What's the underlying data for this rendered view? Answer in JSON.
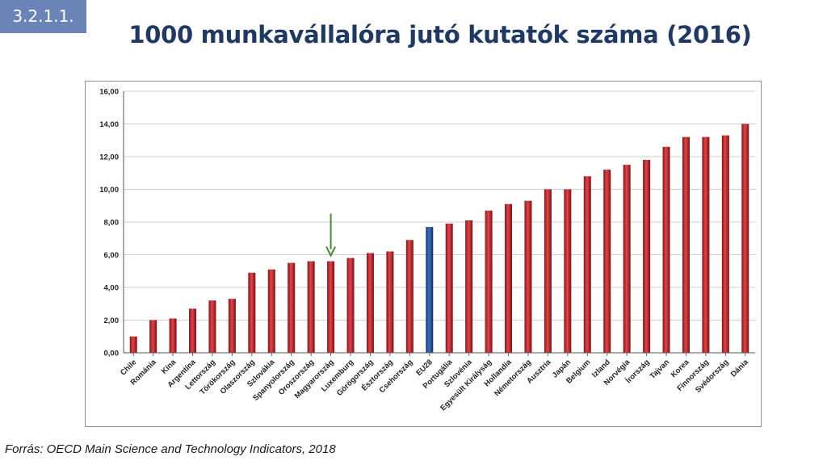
{
  "slide_number": "3.2.1.1.",
  "title": "1000 munkavállalóra jutó kutatók száma (2016)",
  "source": "Forrás: OECD Main Science and Technology Indicators, 2018",
  "colors": {
    "bar": "#c8282d",
    "highlight_bar": "#1f4e96",
    "arrow": "#4c8a2e",
    "title": "#1f3864",
    "slide_number_bg": "#6b84b8"
  },
  "chart_data": {
    "type": "bar",
    "categories": [
      "Chile",
      "Románia",
      "Kína",
      "Argentína",
      "Lettország",
      "Törökország",
      "Olaszország",
      "Szlovákia",
      "Spanyolország",
      "Oroszország",
      "Magyarország",
      "Luxemburg",
      "Görögország",
      "Észtország",
      "Csehország",
      "EU28",
      "Portugália",
      "Szlovénia",
      "Egyesült Királyság",
      "Hollandia",
      "Németország",
      "Ausztria",
      "Japán",
      "Belgium",
      "Izland",
      "Norvégia",
      "Írország",
      "Tajvan",
      "Korea",
      "Finnország",
      "Svédország",
      "Dánia"
    ],
    "values": [
      1.0,
      2.0,
      2.1,
      2.7,
      3.2,
      3.3,
      4.9,
      5.1,
      5.5,
      5.6,
      5.6,
      5.8,
      6.1,
      6.2,
      6.9,
      7.7,
      7.9,
      8.1,
      8.7,
      9.1,
      9.3,
      10.0,
      10.0,
      10.8,
      11.2,
      11.5,
      11.8,
      12.6,
      13.2,
      13.2,
      13.3,
      14.0
    ],
    "highlight_category": "EU28",
    "arrow_category": "Magyarország",
    "ylim": [
      0,
      16
    ],
    "yticks": [
      "0,00",
      "2,00",
      "4,00",
      "6,00",
      "8,00",
      "10,00",
      "12,00",
      "14,00",
      "16,00"
    ],
    "grid": true,
    "legend": "none"
  }
}
